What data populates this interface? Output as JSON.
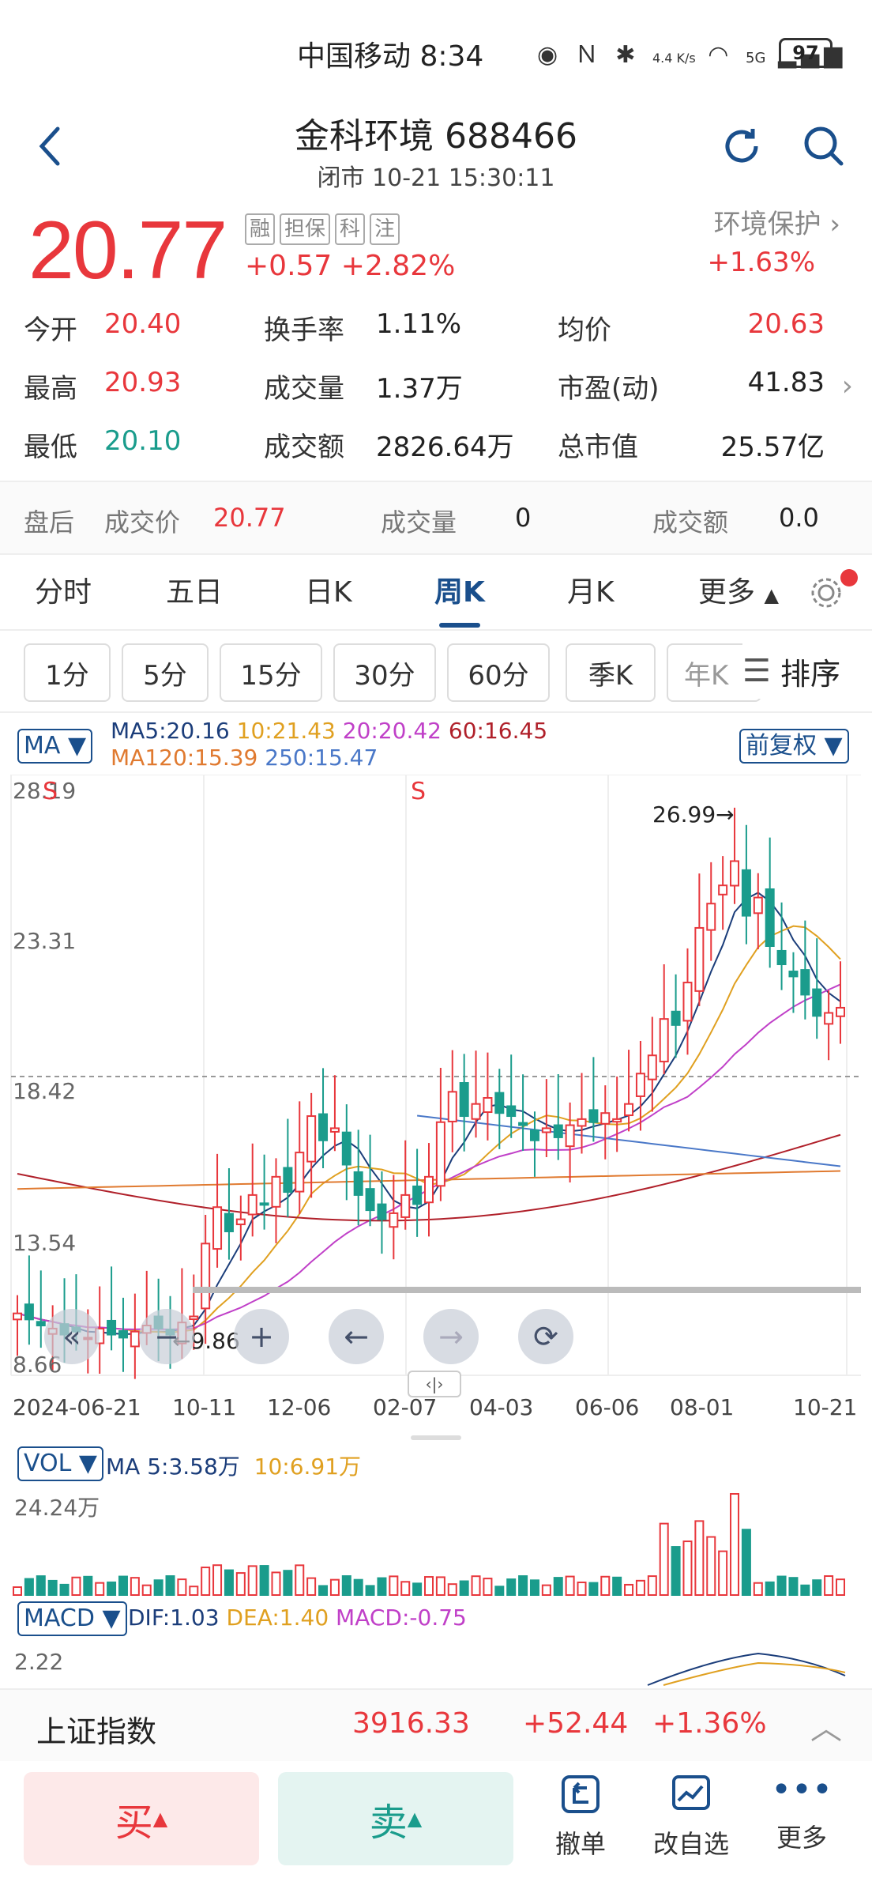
{
  "status_bar": {
    "carrier_time": "中国移动 8:34",
    "net_speed": "4.4 K/s",
    "network": "5G",
    "battery": "97"
  },
  "header": {
    "title": "金科环境 688466",
    "subtitle": "闭市 10-21 15:30:11"
  },
  "quote": {
    "price": "20.77",
    "tags": [
      "融",
      "担保",
      "科",
      "注"
    ],
    "change": "+0.57",
    "change_pct": "+2.82%",
    "sector": "环境保护",
    "sector_chg": "+1.63%"
  },
  "stats": {
    "open_label": "今开",
    "open": "20.40",
    "high_label": "最高",
    "high": "20.93",
    "low_label": "最低",
    "low": "20.10",
    "turnover_label": "换手率",
    "turnover": "1.11%",
    "volume_label": "成交量",
    "volume": "1.37万",
    "amount_label": "成交额",
    "amount": "2826.64万",
    "avg_label": "均价",
    "avg": "20.63",
    "pe_label": "市盈(动)",
    "pe": "41.83",
    "mcap_label": "总市值",
    "mcap": "25.57亿"
  },
  "after_hours": {
    "label": "盘后",
    "price_label": "成交价",
    "price": "20.77",
    "vol_label": "成交量",
    "vol": "0",
    "amt_label": "成交额",
    "amt": "0.0"
  },
  "tabs": [
    "分时",
    "五日",
    "日K",
    "周K",
    "月K",
    "更多"
  ],
  "periods": [
    "1分",
    "5分",
    "15分",
    "30分",
    "60分",
    "季K",
    "年K"
  ],
  "sort_label": "排序",
  "chart": {
    "ma_select": "MA",
    "ma_line1": [
      "MA5:20.16",
      "10:21.43",
      "20:20.42",
      "60:16.45"
    ],
    "ma_line2": [
      "MA120:15.39",
      "250:15.47"
    ],
    "adjust": "前复权",
    "y_ticks": [
      "28.19",
      "23.31",
      "18.42",
      "13.54",
      "8.66"
    ],
    "max_note": "26.99→",
    "min_note": "←9.86",
    "marker_s": "S",
    "x_ticks": [
      "2024-06-21",
      "10-11",
      "12-06",
      "02-07",
      "04-03",
      "06-06",
      "08-01",
      "10-21"
    ],
    "vol_select": "VOL",
    "vol_legend": [
      "MA 5:3.58万",
      "10:6.91万"
    ],
    "vol_tick": "24.24万",
    "macd_select": "MACD",
    "macd_legend": [
      "DIF:1.03",
      "DEA:1.40",
      "MACD:-0.75"
    ],
    "macd_tick": "2.22",
    "colors": {
      "up": "#e8373c",
      "down": "#1a9c8c",
      "ma5": "#1b3d7a",
      "ma10": "#e0a020",
      "ma20": "#c040c8",
      "ma60": "#b0202a",
      "ma120": "#e07a30",
      "ma250": "#4a78c8"
    }
  },
  "index_bar": {
    "name": "上证指数",
    "value": "3916.33",
    "change": "+52.44",
    "change_pct": "+1.36%"
  },
  "bottom": {
    "buy": "买",
    "sell": "卖",
    "cancel": "撤单",
    "watch": "改自选",
    "more": "更多"
  }
}
